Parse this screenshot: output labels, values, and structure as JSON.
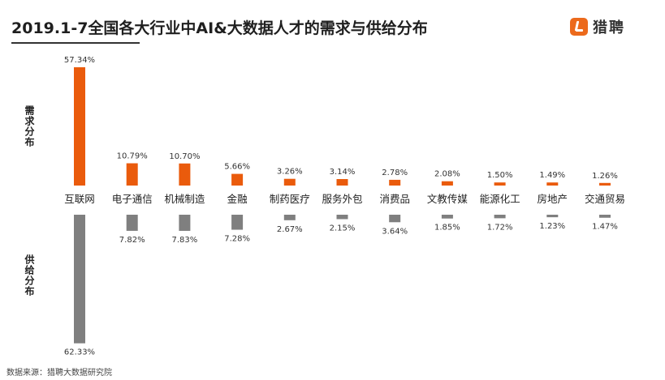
{
  "title": "2019.1-7全国各大行业中AI&大数据人才的需求与供给分布",
  "logo_text": "猎聘",
  "labels": {
    "demand": "需求分布",
    "supply": "供给分布"
  },
  "source": "数据来源：猎聘大数据研究院",
  "colors": {
    "demand": "#ea5b0c",
    "supply": "#7f7f7f"
  },
  "chart_data": {
    "type": "bar",
    "categories": [
      "互联网",
      "电子通信",
      "机械制造",
      "金融",
      "制药医疗",
      "服务外包",
      "消费品",
      "文教传媒",
      "能源化工",
      "房地产",
      "交通贸易"
    ],
    "series": [
      {
        "name": "需求分布",
        "values": [
          57.34,
          10.79,
          10.7,
          5.66,
          3.26,
          3.14,
          2.78,
          2.08,
          1.5,
          1.49,
          1.26
        ],
        "labels": [
          "57.34%",
          "10.79%",
          "10.70%",
          "5.66%",
          "3.26%",
          "3.14%",
          "2.78%",
          "2.08%",
          "1.50%",
          "1.49%",
          "1.26%"
        ]
      },
      {
        "name": "供给分布",
        "values": [
          62.33,
          7.82,
          7.83,
          7.28,
          2.67,
          2.15,
          3.64,
          1.85,
          1.72,
          1.23,
          1.47
        ],
        "labels": [
          "62.33%",
          "7.82%",
          "7.83%",
          "7.28%",
          "2.67%",
          "2.15%",
          "3.64%",
          "1.85%",
          "1.72%",
          "1.23%",
          "1.47%"
        ]
      }
    ]
  }
}
